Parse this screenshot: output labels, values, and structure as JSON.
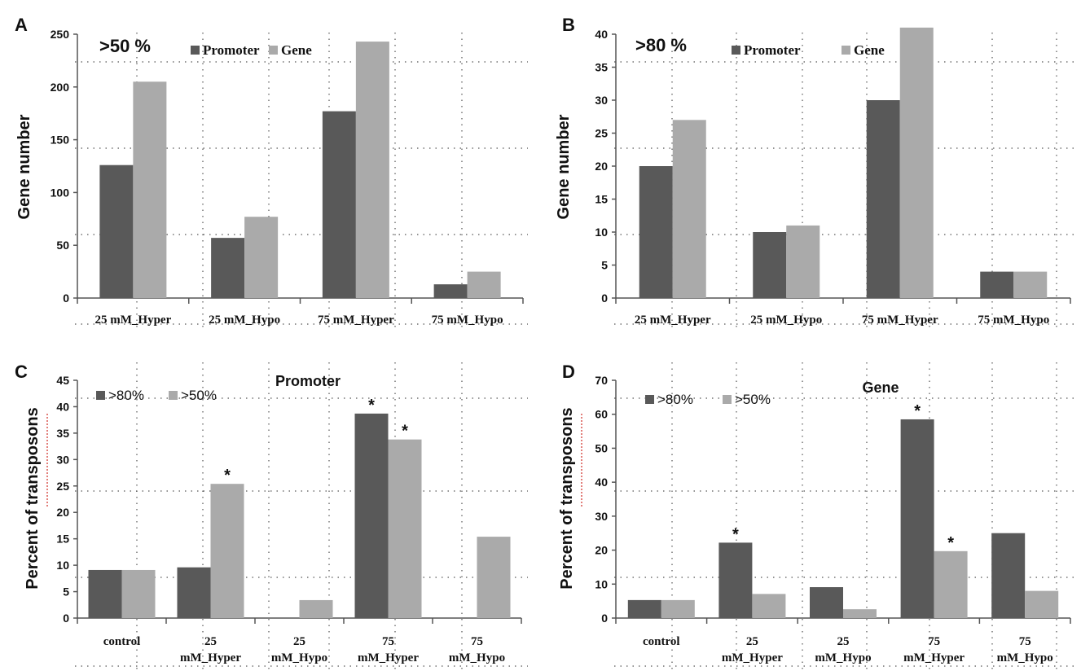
{
  "colors": {
    "dark": "#595959",
    "light": "#aaaaaa"
  },
  "chart_data": [
    {
      "panel": "A",
      "type": "bar",
      "title": "",
      "annotation": ">50 %",
      "ylabel": "Gene number",
      "xlabel": "",
      "ylim": [
        0,
        250
      ],
      "yticks": [
        0,
        50,
        100,
        150,
        200,
        250
      ],
      "categories": [
        [
          "25 mM_Hyper"
        ],
        [
          "25 mM_Hypo"
        ],
        [
          "75 mM_Hyper"
        ],
        [
          "75 mM_Hypo"
        ]
      ],
      "series": [
        {
          "name": "Promoter",
          "values": [
            126,
            57,
            177,
            13
          ]
        },
        {
          "name": "Gene",
          "values": [
            205,
            77,
            243,
            25
          ]
        }
      ],
      "stars": [],
      "legend": "top",
      "legend_font": "serif",
      "grid": true
    },
    {
      "panel": "B",
      "type": "bar",
      "title": "",
      "annotation": ">80 %",
      "ylabel": "Gene number",
      "xlabel": "",
      "ylim": [
        0,
        40
      ],
      "yticks": [
        0,
        5,
        10,
        15,
        20,
        25,
        30,
        35,
        40
      ],
      "categories": [
        [
          "25 mM_Hyper"
        ],
        [
          "25 mM_Hypo"
        ],
        [
          "75 mM_Hyper"
        ],
        [
          "75 mM_Hypo"
        ]
      ],
      "series": [
        {
          "name": "Promoter",
          "values": [
            20,
            10,
            30,
            4
          ]
        },
        {
          "name": "Gene",
          "values": [
            27,
            11,
            41,
            4
          ]
        }
      ],
      "stars": [],
      "legend": "top",
      "legend_font": "serif",
      "grid": true
    },
    {
      "panel": "C",
      "type": "bar",
      "title": "Promoter",
      "annotation": "",
      "ylabel": "Percent of transposons",
      "xlabel": "",
      "ylim": [
        0,
        45
      ],
      "yticks": [
        0,
        5,
        10,
        15,
        20,
        25,
        30,
        35,
        40,
        45
      ],
      "categories": [
        [
          "control"
        ],
        [
          "25",
          "mM_Hyper"
        ],
        [
          "25",
          "mM_Hypo"
        ],
        [
          "75",
          "mM_Hyper"
        ],
        [
          "75",
          "mM_Hypo"
        ]
      ],
      "series": [
        {
          "name": ">80%",
          "values": [
            9.1,
            9.6,
            0,
            38.7,
            0
          ]
        },
        {
          "name": ">50%",
          "values": [
            9.1,
            25.4,
            3.4,
            33.8,
            15.4
          ]
        }
      ],
      "stars": [
        [
          1,
          1
        ],
        [
          3,
          0
        ],
        [
          3,
          1
        ]
      ],
      "star_symbol": "*",
      "legend": "top-left",
      "legend_font": "sans",
      "grid": true
    },
    {
      "panel": "D",
      "type": "bar",
      "title": "Gene",
      "annotation": "",
      "ylabel": "Percent of transposons",
      "xlabel": "",
      "ylim": [
        0,
        70
      ],
      "yticks": [
        0,
        10,
        20,
        30,
        40,
        50,
        60,
        70
      ],
      "categories": [
        [
          "control"
        ],
        [
          "25",
          "mM_Hyper"
        ],
        [
          "25",
          "mM_Hypo"
        ],
        [
          "75",
          "mM_Hyper"
        ],
        [
          "75",
          "mM_Hypo"
        ]
      ],
      "series": [
        {
          "name": ">80%",
          "values": [
            5.3,
            22.2,
            9.1,
            58.5,
            25.0
          ]
        },
        {
          "name": ">50%",
          "values": [
            5.3,
            7.1,
            2.6,
            19.7,
            8.0
          ]
        }
      ],
      "stars": [
        [
          1,
          0
        ],
        [
          3,
          0
        ],
        [
          3,
          1
        ]
      ],
      "star_symbol": "*",
      "legend": "top-left",
      "legend_font": "sans",
      "grid": true
    }
  ]
}
